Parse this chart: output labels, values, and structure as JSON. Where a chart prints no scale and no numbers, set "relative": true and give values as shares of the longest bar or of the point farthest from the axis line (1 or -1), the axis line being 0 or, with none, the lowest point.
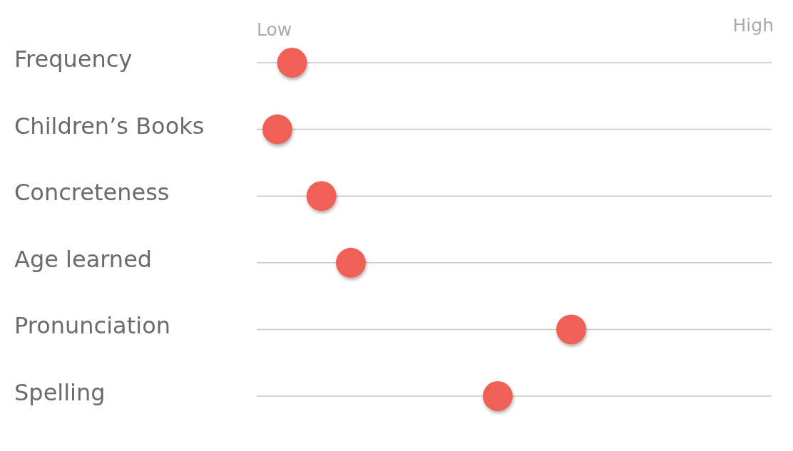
{
  "chart_data": {
    "type": "scatter",
    "orientation": "horizontal",
    "relative": true,
    "categories": [
      "Frequency",
      "Children’s Books",
      "Concreteness",
      "Age learned",
      "Pronunciation",
      "Spelling"
    ],
    "values": [
      0.05,
      0,
      0.15,
      0.25,
      1,
      0.75
    ],
    "color": "#f06157",
    "annotations": [
      "Low",
      "High"
    ],
    "grid": "y",
    "marker": "circle"
  }
}
